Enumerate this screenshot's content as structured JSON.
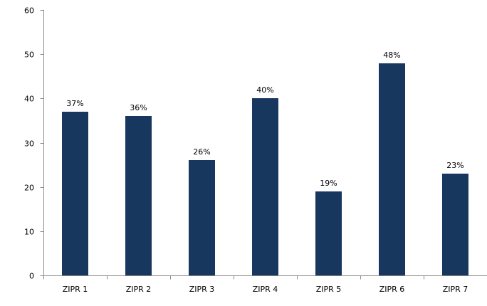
{
  "chart_data": {
    "type": "bar",
    "categories": [
      "ZIPR 1",
      "ZIPR 2",
      "ZIPR 3",
      "ZIPR 4",
      "ZIPR 5",
      "ZIPR 6",
      "ZIPR 7"
    ],
    "values": [
      37,
      36,
      26,
      40,
      19,
      48,
      23
    ],
    "data_labels": [
      "37%",
      "36%",
      "26%",
      "40%",
      "19%",
      "48%",
      "23%"
    ],
    "title": "",
    "xlabel": "",
    "ylabel": "",
    "ylim": [
      0,
      60
    ],
    "yticks": [
      "0",
      "10",
      "20",
      "30",
      "40",
      "50",
      "60"
    ],
    "grid": false,
    "legend": "none",
    "bar_color": "#17375e"
  }
}
